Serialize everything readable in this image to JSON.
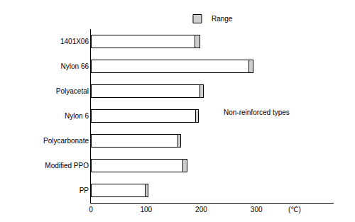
{
  "chart_data": {
    "type": "bar",
    "orientation": "horizontal",
    "stacked": true,
    "categories": [
      "1401X06",
      "Nylon 66",
      "Polyacetal",
      "Nylon 6",
      "Polycarbonate",
      "Modified PPO",
      "PP"
    ],
    "series": [
      {
        "color": "#ffffff",
        "values": [
          189,
          286,
          197,
          190,
          157,
          166,
          98
        ]
      },
      {
        "name": "Range",
        "color": "#d0d0d0",
        "values": [
          8,
          8,
          7,
          5,
          6,
          8,
          6
        ]
      }
    ],
    "xlim": [
      0,
      440
    ],
    "xticks": [
      0,
      100,
      200,
      300
    ],
    "xlabel": "(℃)",
    "annotations": [
      "Non-reinforced types"
    ],
    "legend": "top",
    "grid": false
  }
}
